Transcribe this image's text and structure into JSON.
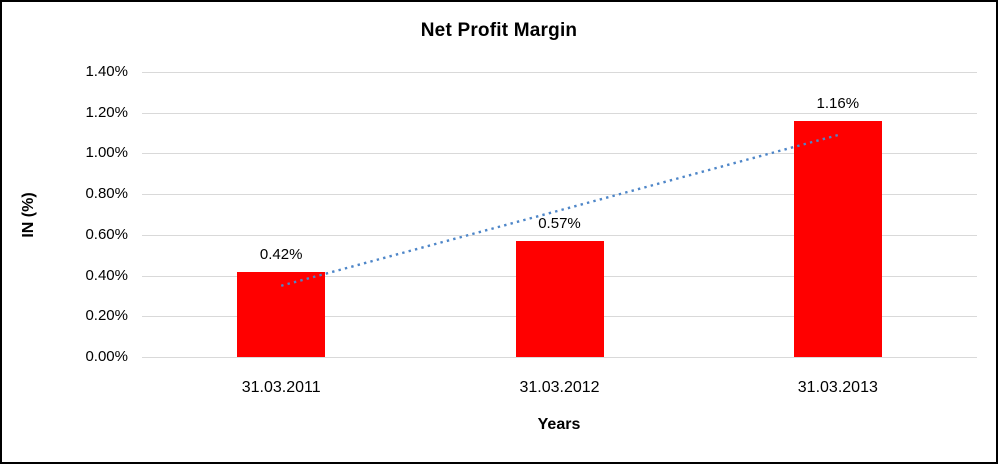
{
  "window": {
    "background": "#FFFFFF",
    "border_color": "#000000"
  },
  "chart_data": {
    "type": "bar",
    "title": "Net Profit Margin",
    "categories": [
      "31.03.2011",
      "31.03.2012",
      "31.03.2013"
    ],
    "values": [
      0.42,
      0.57,
      1.16
    ],
    "data_labels": [
      "0.42%",
      "0.57%",
      "1.16%"
    ],
    "xlabel": "Years",
    "ylabel": "IN (%)",
    "ylim": [
      0,
      1.4
    ],
    "ytick_step": 0.2,
    "ytick_labels": [
      "0.00%",
      "0.20%",
      "0.40%",
      "0.60%",
      "0.80%",
      "1.00%",
      "1.20%",
      "1.40%"
    ],
    "grid": true,
    "legend": "none",
    "bar_color": "#FF0000",
    "gridline_color": "#D9D9D9",
    "text_color": "#000000",
    "trendline": {
      "type": "linear",
      "style": "dotted",
      "color": "#4E86C8",
      "start_value": 0.35,
      "end_value": 1.09
    }
  }
}
